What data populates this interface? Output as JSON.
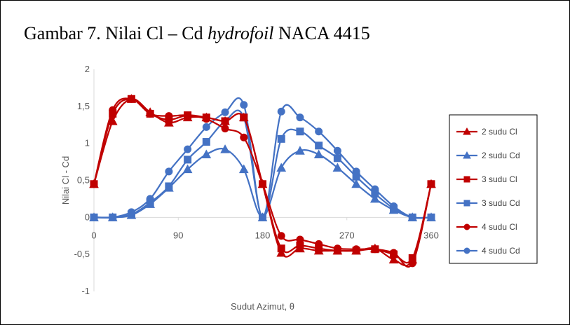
{
  "caption": {
    "prefix": "Gambar 7. Nilai Cl – Cd ",
    "italic": "hydrofoil",
    "suffix": " NACA 4415"
  },
  "colors": {
    "cl": "#c00000",
    "cd": "#4472c4"
  },
  "chart_data": {
    "type": "line",
    "xlabel": "Sudut Azimut, θ",
    "ylabel": "Nilai Cl - Cd",
    "xlim": [
      0,
      360
    ],
    "ylim": [
      -1,
      2
    ],
    "x_ticks": [
      0,
      90,
      180,
      270,
      360
    ],
    "y_ticks": [
      2,
      1.5,
      1,
      0.5,
      0,
      -0.5,
      -1
    ],
    "y_tick_labels": [
      "2",
      "1,5",
      "1",
      "0,5",
      "0",
      "-0,5",
      "-1"
    ],
    "grid": false,
    "legend_position": "right",
    "x": [
      0,
      20,
      40,
      60,
      80,
      100,
      120,
      140,
      160,
      180,
      200,
      220,
      240,
      260,
      280,
      300,
      320,
      340,
      360
    ],
    "series": [
      {
        "name": "2 sudu Cl",
        "marker": "triangle",
        "color": "cl",
        "values": [
          0.45,
          1.3,
          1.6,
          1.42,
          1.28,
          1.35,
          1.35,
          1.3,
          1.35,
          0.45,
          -0.48,
          -0.42,
          -0.45,
          -0.45,
          -0.45,
          -0.42,
          -0.57,
          -0.57,
          0.45
        ]
      },
      {
        "name": "2 sudu Cd",
        "marker": "triangle",
        "color": "cd",
        "values": [
          0,
          0,
          0.03,
          0.18,
          0.4,
          0.65,
          0.85,
          0.92,
          0.65,
          0,
          0.67,
          0.9,
          0.85,
          0.67,
          0.45,
          0.25,
          0.1,
          0,
          0
        ]
      },
      {
        "name": "3 sudu Cl",
        "marker": "square",
        "color": "cl",
        "values": [
          0.45,
          1.4,
          1.6,
          1.4,
          1.32,
          1.38,
          1.35,
          1.3,
          1.35,
          0.45,
          -0.42,
          -0.38,
          -0.42,
          -0.45,
          -0.45,
          -0.43,
          -0.5,
          -0.55,
          0.45
        ]
      },
      {
        "name": "3 sudu Cd",
        "marker": "square",
        "color": "cd",
        "values": [
          0,
          0,
          0.04,
          0.2,
          0.42,
          0.78,
          1.02,
          1.3,
          1.35,
          0,
          1.06,
          1.16,
          0.97,
          0.8,
          0.55,
          0.32,
          0.12,
          0,
          0
        ]
      },
      {
        "name": "4 sudu Cl",
        "marker": "circle",
        "color": "cl",
        "values": [
          0.45,
          1.45,
          1.6,
          1.4,
          1.37,
          1.38,
          1.33,
          1.2,
          1.08,
          0.45,
          -0.25,
          -0.3,
          -0.36,
          -0.42,
          -0.43,
          -0.43,
          -0.48,
          -0.62,
          0.45
        ]
      },
      {
        "name": "4 sudu Cd",
        "marker": "circle",
        "color": "cd",
        "values": [
          0,
          0,
          0.07,
          0.25,
          0.62,
          0.92,
          1.22,
          1.42,
          1.52,
          0,
          1.43,
          1.35,
          1.16,
          0.9,
          0.62,
          0.38,
          0.15,
          0,
          0
        ]
      }
    ]
  }
}
